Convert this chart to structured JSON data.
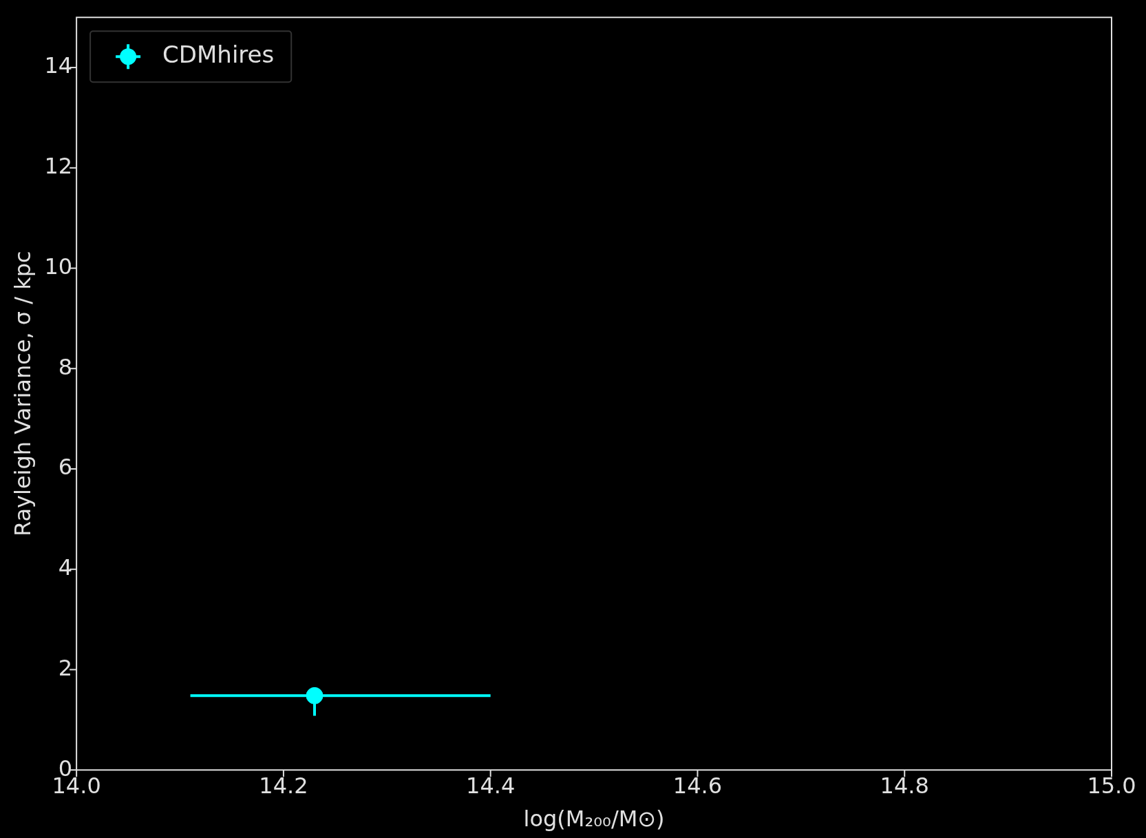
{
  "chart_data": {
    "type": "scatter",
    "xlabel": "log(M₂₀₀/M⊙)",
    "ylabel": "Rayleigh Variance, σ / kpc",
    "xlim": [
      14.0,
      15.0
    ],
    "xticks": [
      {
        "value": 14.0,
        "label": "14.0"
      },
      {
        "value": 14.2,
        "label": "14.2"
      },
      {
        "value": 14.4,
        "label": "14.4"
      },
      {
        "value": 14.6,
        "label": "14.6"
      },
      {
        "value": 14.8,
        "label": "14.8"
      },
      {
        "value": 15.0,
        "label": "15.0"
      }
    ],
    "ylim": [
      0,
      15
    ],
    "yticks": [
      0,
      2,
      4,
      6,
      8,
      10,
      12,
      14
    ],
    "series": [
      {
        "name": "CDMhires",
        "color": "#00ffff",
        "x": [
          14.23
        ],
        "values": [
          1.48
        ],
        "errors": [
          [
            1.08,
            1.48
          ]
        ],
        "xerrors": [
          [
            14.11,
            14.4
          ]
        ]
      }
    ],
    "marker": "circle",
    "legend": "top left",
    "grid": false
  }
}
